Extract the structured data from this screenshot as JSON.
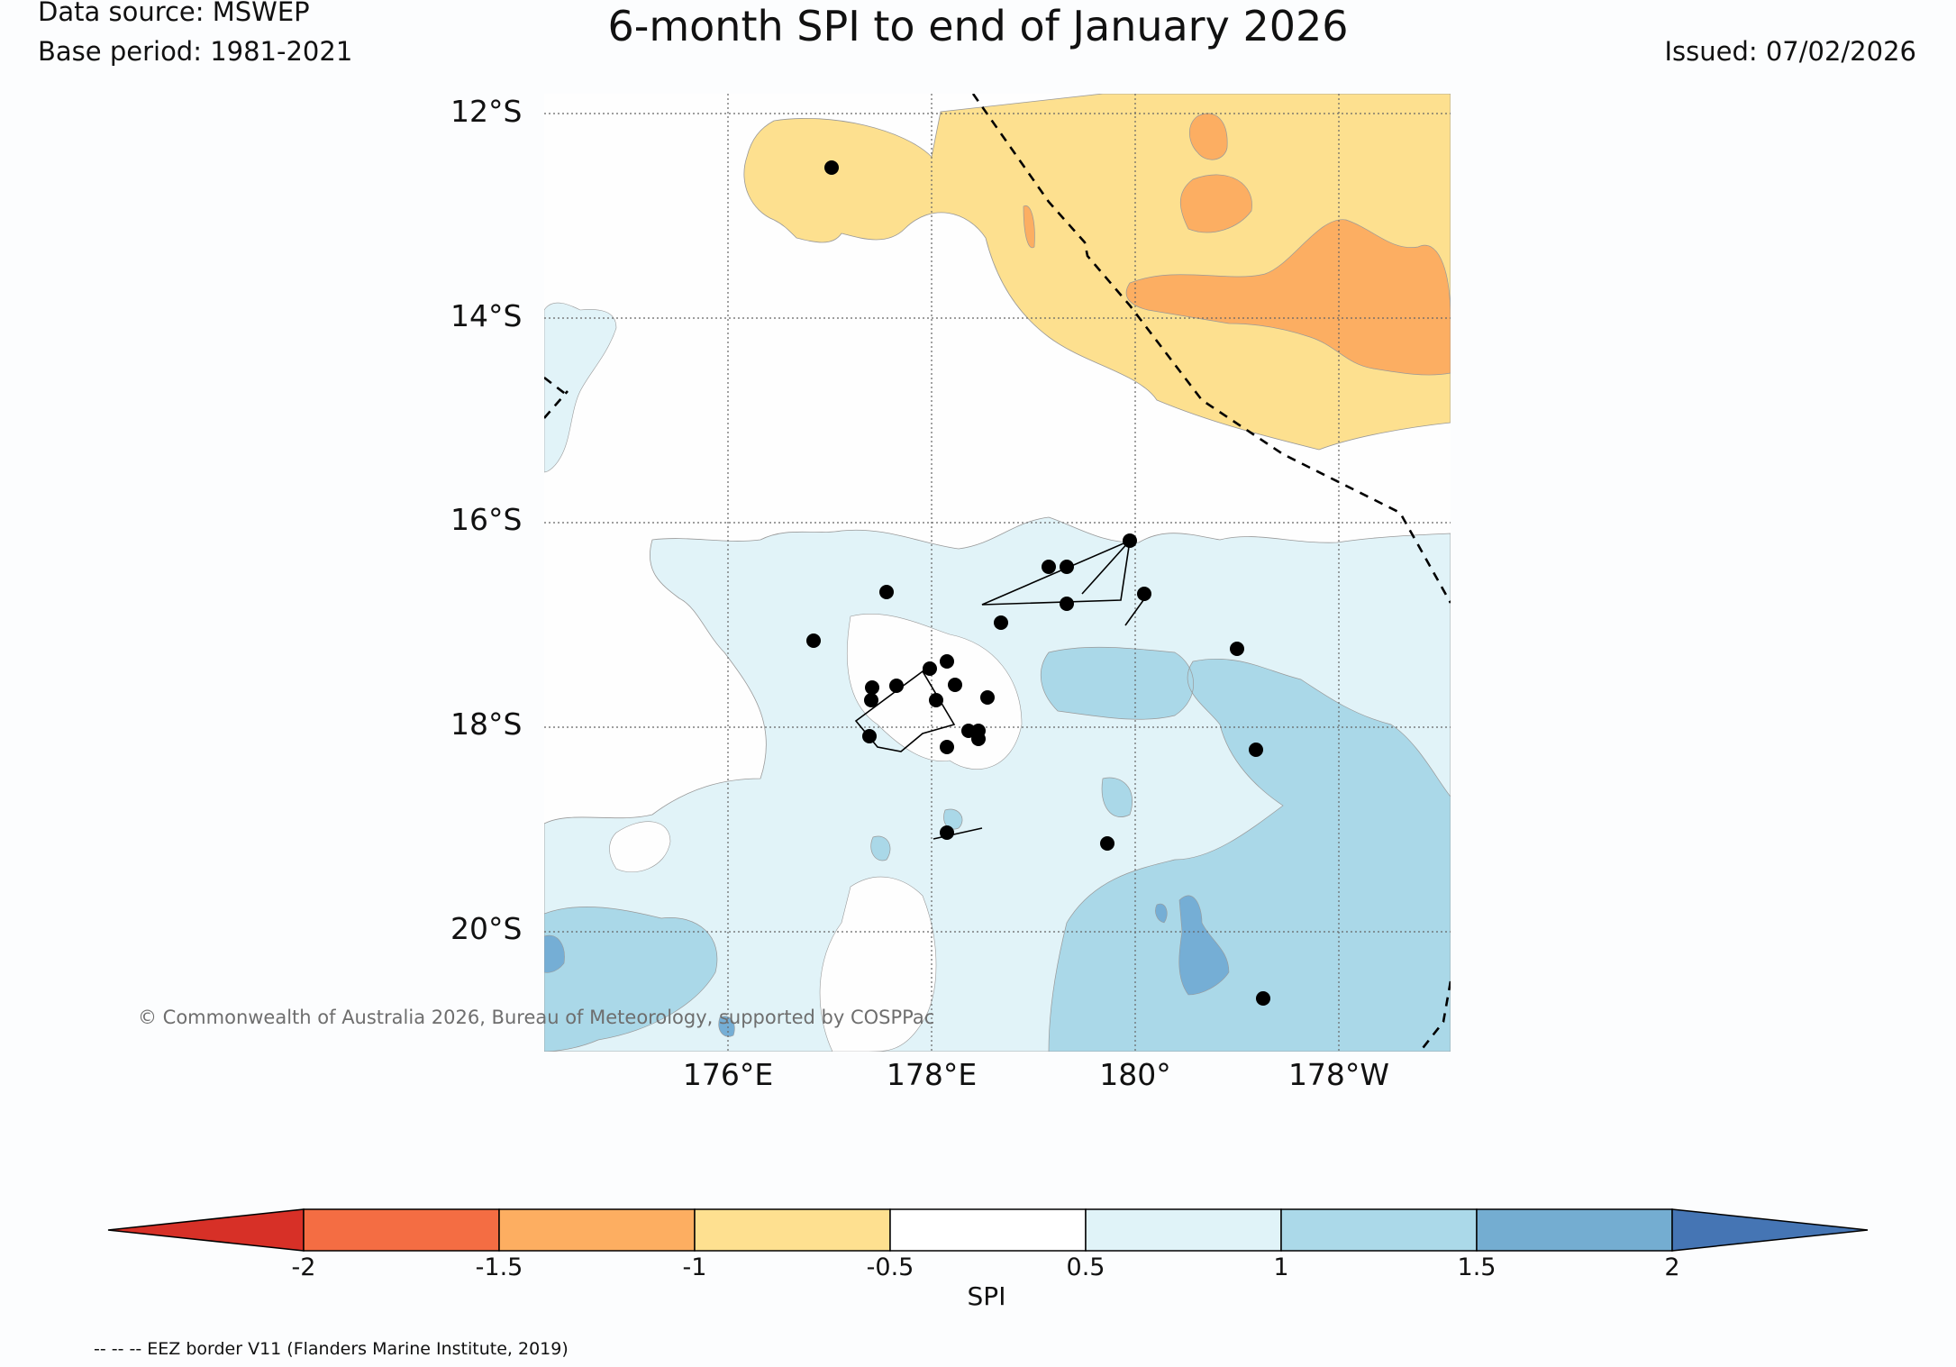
{
  "header": {
    "title": "6-month SPI to end of January 2026",
    "data_source": "Data source: MSWEP",
    "base_period": "Base period: 1981-2021",
    "issued": "Issued: 07/02/2026"
  },
  "map": {
    "lat_labels": [
      "12°S",
      "14°S",
      "16°S",
      "18°S",
      "20°S"
    ],
    "lon_labels": [
      "176°E",
      "178°E",
      "180°",
      "178°W"
    ],
    "copyright": "© Commonwealth of Australia 2026, Bureau of Meteorology, supported by COSPPac",
    "layers": [
      "SPI shading",
      "station markers",
      "EEZ border",
      "coastlines"
    ],
    "colors": {
      "dry_1": "#fde08f",
      "dry_15": "#fcae62",
      "wet_05": "#e1f3f8",
      "wet_1": "#aad8e8",
      "wet_15": "#75aed5",
      "background": "#fefefe"
    }
  },
  "colorbar": {
    "label": "SPI",
    "ticks": [
      "-2",
      "-1.5",
      "-1",
      "-0.5",
      "0.5",
      "1",
      "1.5",
      "2"
    ],
    "classes": [
      {
        "range": "< -2",
        "color": "#d73027"
      },
      {
        "range": "-2 to -1.5",
        "color": "#f46d43"
      },
      {
        "range": "-1.5 to -1",
        "color": "#fdae61"
      },
      {
        "range": "-1 to -0.5",
        "color": "#fee090"
      },
      {
        "range": "-0.5 to 0.5",
        "color": "#ffffff"
      },
      {
        "range": "0.5 to 1",
        "color": "#e0f3f8"
      },
      {
        "range": "1 to 1.5",
        "color": "#abd9e9"
      },
      {
        "range": "1.5 to 2",
        "color": "#74add1"
      },
      {
        "range": "> 2",
        "color": "#4575b4"
      }
    ]
  },
  "footnote": "-- -- -- EEZ border V11 (Flanders Marine Institute, 2019)"
}
